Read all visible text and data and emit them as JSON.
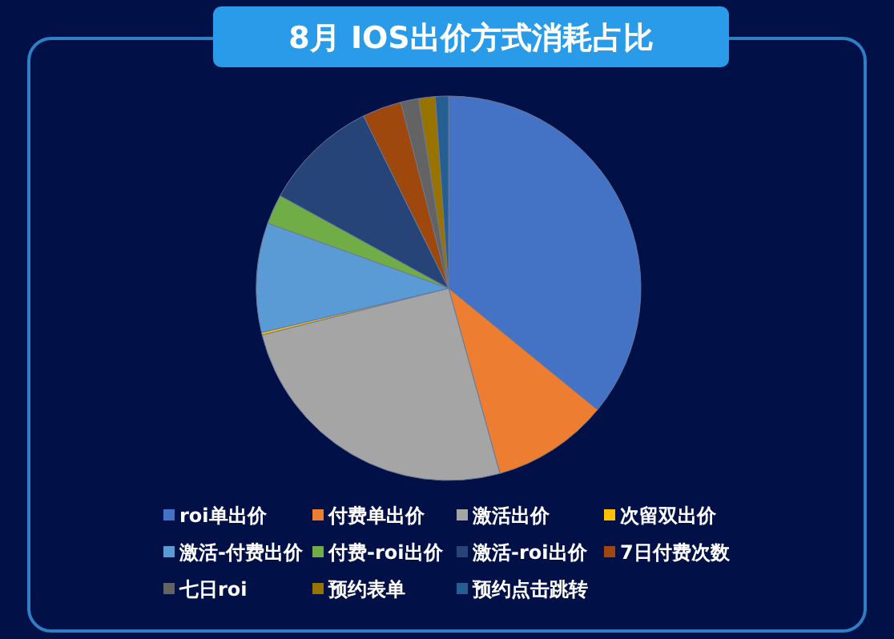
{
  "chart_data": {
    "type": "pie",
    "title": "8月 IOS出价方式消耗占比",
    "categories": [
      "roi单出价",
      "付费单出价",
      "激活出价",
      "次留双出价",
      "激活-付费出价",
      "付费-roi出价",
      "激活-roi出价",
      "7日付费次数",
      "七日roi",
      "预约表单",
      "预约点击跳转"
    ],
    "values": [
      35.9,
      9.8,
      25.4,
      0.2,
      9.2,
      2.5,
      9.7,
      3.3,
      1.5,
      1.4,
      1.1
    ],
    "colors": [
      "#4472c4",
      "#ed7d31",
      "#a5a5a5",
      "#ffc000",
      "#5b9bd5",
      "#70ad47",
      "#264478",
      "#9e480e",
      "#636363",
      "#997300",
      "#255e91"
    ],
    "legend": "bottom"
  }
}
